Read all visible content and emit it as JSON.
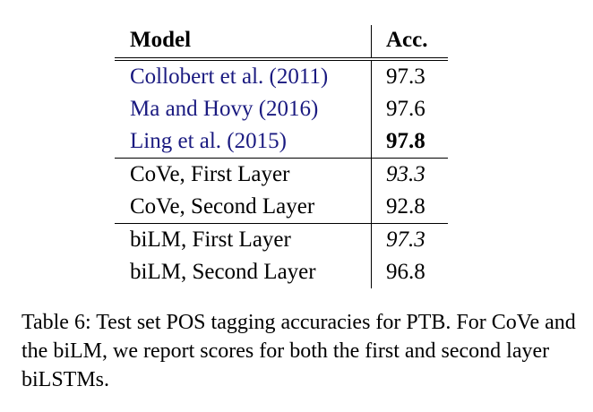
{
  "table": {
    "headers": {
      "model": "Model",
      "acc": "Acc."
    },
    "rows": [
      {
        "model": "Collobert et al. (2011)",
        "acc": "97.3"
      },
      {
        "model": "Ma and Hovy (2016)",
        "acc": "97.6"
      },
      {
        "model": "Ling et al. (2015)",
        "acc": "97.8"
      },
      {
        "model": "CoVe, First Layer",
        "acc": "93.3"
      },
      {
        "model": "CoVe, Second Layer",
        "acc": "92.8"
      },
      {
        "model": "biLM, First Layer",
        "acc": "97.3"
      },
      {
        "model": "biLM, Second Layer",
        "acc": "96.8"
      }
    ]
  },
  "caption": "Table 6: Test set POS tagging accuracies for PTB. For CoVe and the biLM, we report scores for both the first and second layer biLSTMs.",
  "colors": {
    "citation_link": "#1a1a80",
    "text": "#000000"
  }
}
